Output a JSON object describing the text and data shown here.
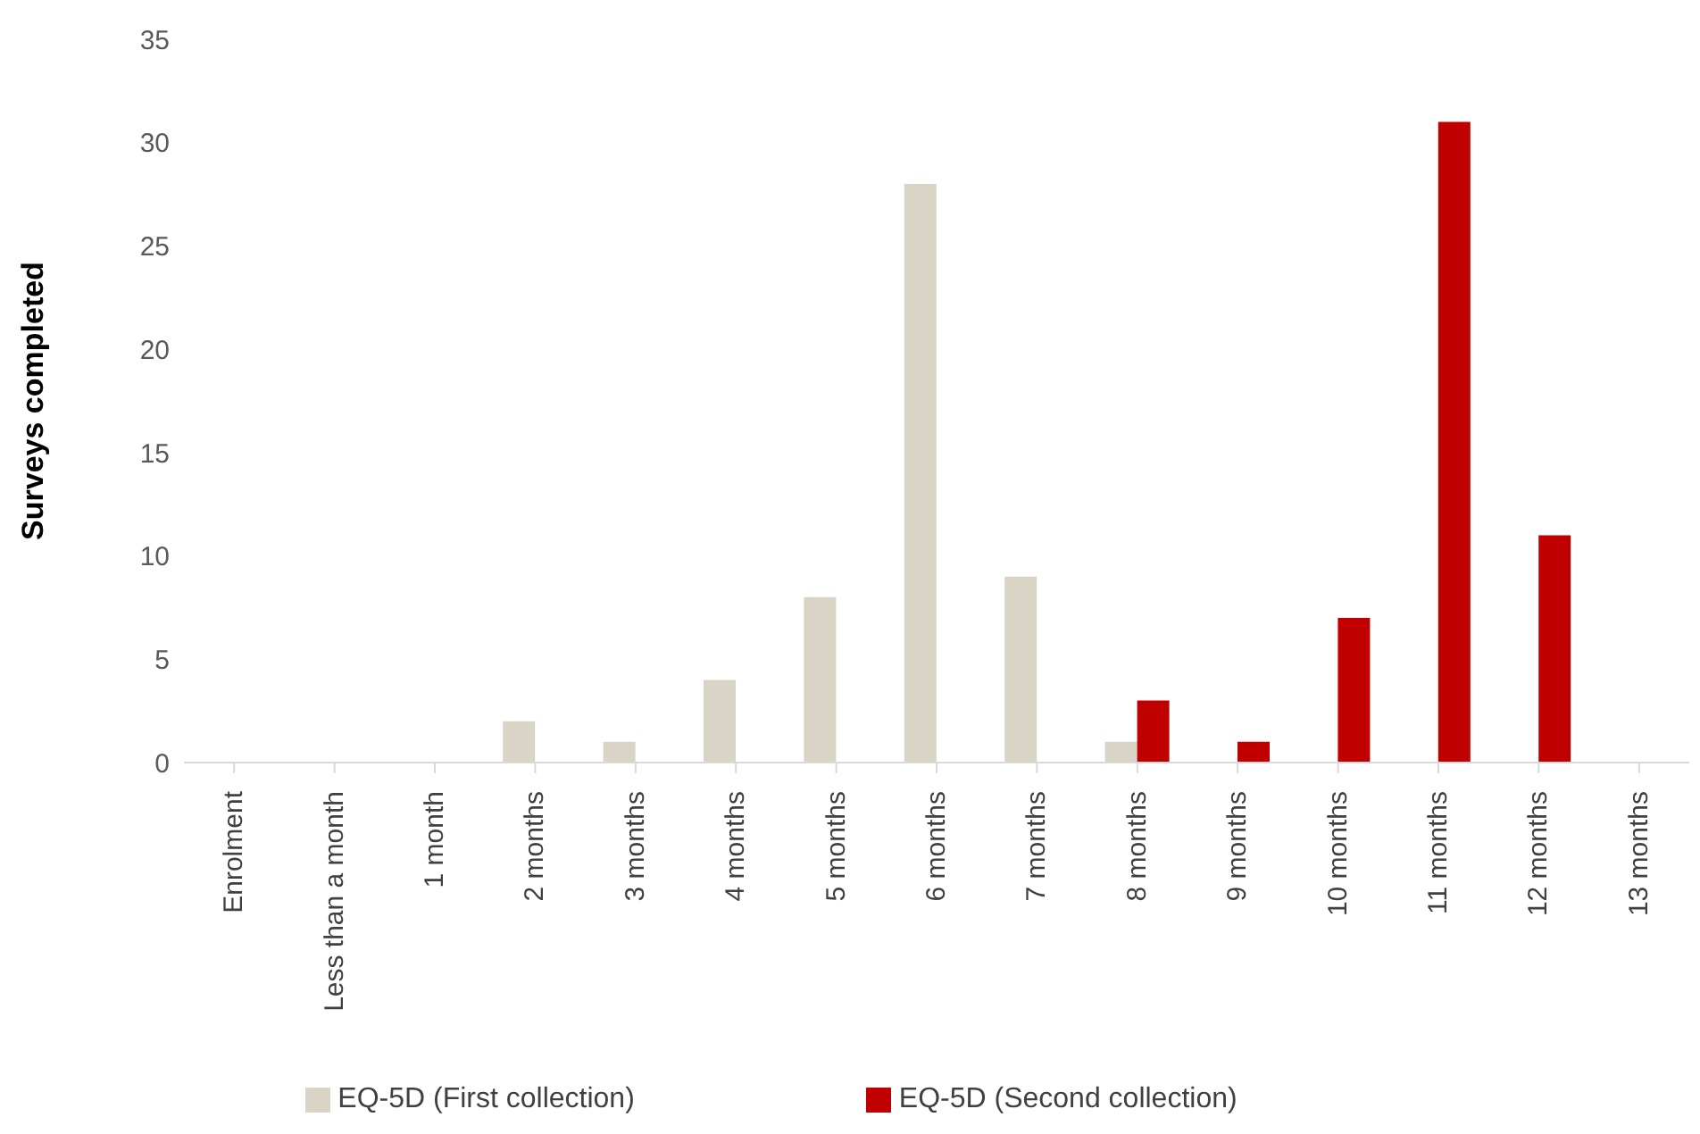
{
  "chart_data": {
    "type": "bar",
    "ylabel": "Surveys completed",
    "categories": [
      "Enrolment",
      "Less than a month",
      "1 month",
      "2 months",
      "3 months",
      "4 months",
      "5 months",
      "6 months",
      "7 months",
      "8 months",
      "9 months",
      "10 months",
      "11 months",
      "12 months",
      "13 months"
    ],
    "series": [
      {
        "name": "EQ-5D (First collection)",
        "color": "#d9d4c6",
        "values": [
          0,
          0,
          0,
          2,
          1,
          4,
          8,
          28,
          9,
          1,
          0,
          0,
          0,
          0,
          0
        ]
      },
      {
        "name": "EQ-5D (Second collection)",
        "color": "#c00000",
        "values": [
          0,
          0,
          0,
          0,
          0,
          0,
          0,
          0,
          0,
          3,
          1,
          7,
          31,
          11,
          0
        ]
      }
    ],
    "ylim": [
      0,
      35
    ],
    "yticks": [
      0,
      5,
      10,
      15,
      20,
      25,
      30,
      35
    ],
    "grid": false,
    "legend": "bottom"
  }
}
